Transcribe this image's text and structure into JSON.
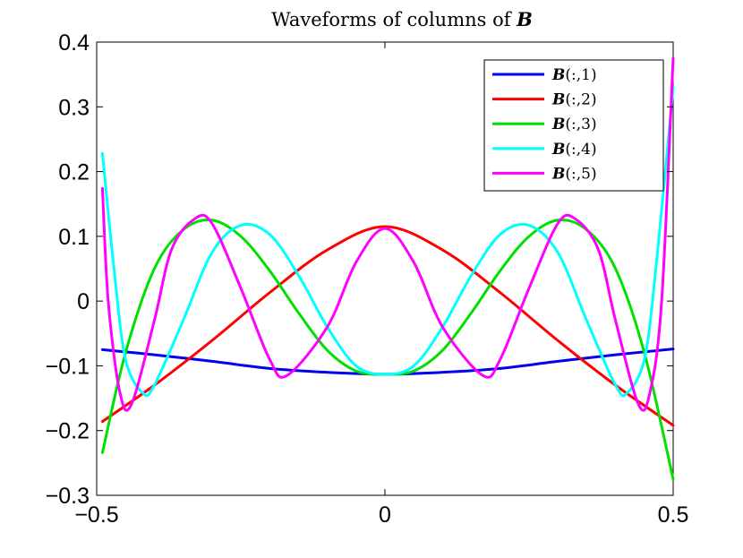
{
  "chart_data": {
    "type": "line",
    "title_prefix": "Waveforms of columns of ",
    "title_symbol": "B",
    "xlabel": "",
    "ylabel": "",
    "xlim": [
      -0.5,
      0.5
    ],
    "ylim": [
      -0.3,
      0.4
    ],
    "x_ticks": [
      -0.5,
      0,
      0.5
    ],
    "x_tick_labels": [
      "−0.5",
      "0",
      "0.5"
    ],
    "y_ticks": [
      -0.3,
      -0.2,
      -0.1,
      0,
      0.1,
      0.2,
      0.3,
      0.4
    ],
    "y_tick_labels": [
      "−0.3",
      "−0.2",
      "−0.1",
      "0",
      "0.1",
      "0.2",
      "0.3",
      "0.4"
    ],
    "grid": false,
    "legend_position": "top-right",
    "series": [
      {
        "name_symbol": "B",
        "name_suffix": "(:,1)",
        "color": "#0000ee",
        "x": [
          -0.49,
          -0.4,
          -0.3,
          -0.2,
          -0.1,
          0,
          0.1,
          0.2,
          0.3,
          0.4,
          0.5
        ],
        "y": [
          -0.075,
          -0.083,
          -0.093,
          -0.104,
          -0.11,
          -0.113,
          -0.11,
          -0.104,
          -0.093,
          -0.083,
          -0.074
        ]
      },
      {
        "name_symbol": "B",
        "name_suffix": "(:,2)",
        "color": "#ff0000",
        "x": [
          -0.49,
          -0.4,
          -0.3,
          -0.2,
          -0.1,
          0,
          0.1,
          0.2,
          0.3,
          0.4,
          0.5
        ],
        "y": [
          -0.186,
          -0.13,
          -0.061,
          0.013,
          0.079,
          0.115,
          0.079,
          0.013,
          -0.061,
          -0.13,
          -0.192
        ]
      },
      {
        "name_symbol": "B",
        "name_suffix": "(:,3)",
        "color": "#00e000",
        "x": [
          -0.49,
          -0.45,
          -0.4,
          -0.35,
          -0.3,
          -0.25,
          -0.2,
          -0.15,
          -0.1,
          -0.05,
          0,
          0.05,
          0.1,
          0.15,
          0.2,
          0.25,
          0.3,
          0.35,
          0.4,
          0.45,
          0.5
        ],
        "y": [
          -0.234,
          -0.08,
          0.05,
          0.11,
          0.125,
          0.1,
          0.047,
          -0.018,
          -0.076,
          -0.108,
          -0.113,
          -0.108,
          -0.076,
          -0.018,
          0.047,
          0.1,
          0.125,
          0.11,
          0.05,
          -0.08,
          -0.275
        ]
      },
      {
        "name_symbol": "B",
        "name_suffix": "(:,4)",
        "color": "#00ffff",
        "x": [
          -0.49,
          -0.47,
          -0.45,
          -0.42,
          -0.4,
          -0.35,
          -0.3,
          -0.25,
          -0.2,
          -0.15,
          -0.1,
          -0.05,
          0,
          0.05,
          0.1,
          0.15,
          0.2,
          0.25,
          0.3,
          0.35,
          0.4,
          0.42,
          0.45,
          0.47,
          0.5
        ],
        "y": [
          0.228,
          0.05,
          -0.09,
          -0.142,
          -0.13,
          -0.03,
          0.075,
          0.117,
          0.103,
          0.04,
          -0.04,
          -0.1,
          -0.113,
          -0.1,
          -0.04,
          0.04,
          0.103,
          0.117,
          0.075,
          -0.03,
          -0.13,
          -0.142,
          -0.09,
          0.05,
          0.33
        ]
      },
      {
        "name_symbol": "B",
        "name_suffix": "(:,5)",
        "color": "#ff00ff",
        "x": [
          -0.49,
          -0.48,
          -0.46,
          -0.44,
          -0.4,
          -0.37,
          -0.33,
          -0.3,
          -0.25,
          -0.2,
          -0.17,
          -0.1,
          -0.05,
          0,
          0.05,
          0.1,
          0.17,
          0.2,
          0.25,
          0.3,
          0.33,
          0.37,
          0.4,
          0.44,
          0.46,
          0.48,
          0.5
        ],
        "y": [
          0.174,
          0.0,
          -0.14,
          -0.16,
          -0.03,
          0.08,
          0.127,
          0.12,
          0.02,
          -0.09,
          -0.115,
          -0.04,
          0.06,
          0.112,
          0.06,
          -0.04,
          -0.115,
          -0.09,
          0.02,
          0.12,
          0.127,
          0.08,
          -0.03,
          -0.16,
          -0.14,
          0.0,
          0.375
        ]
      }
    ]
  }
}
